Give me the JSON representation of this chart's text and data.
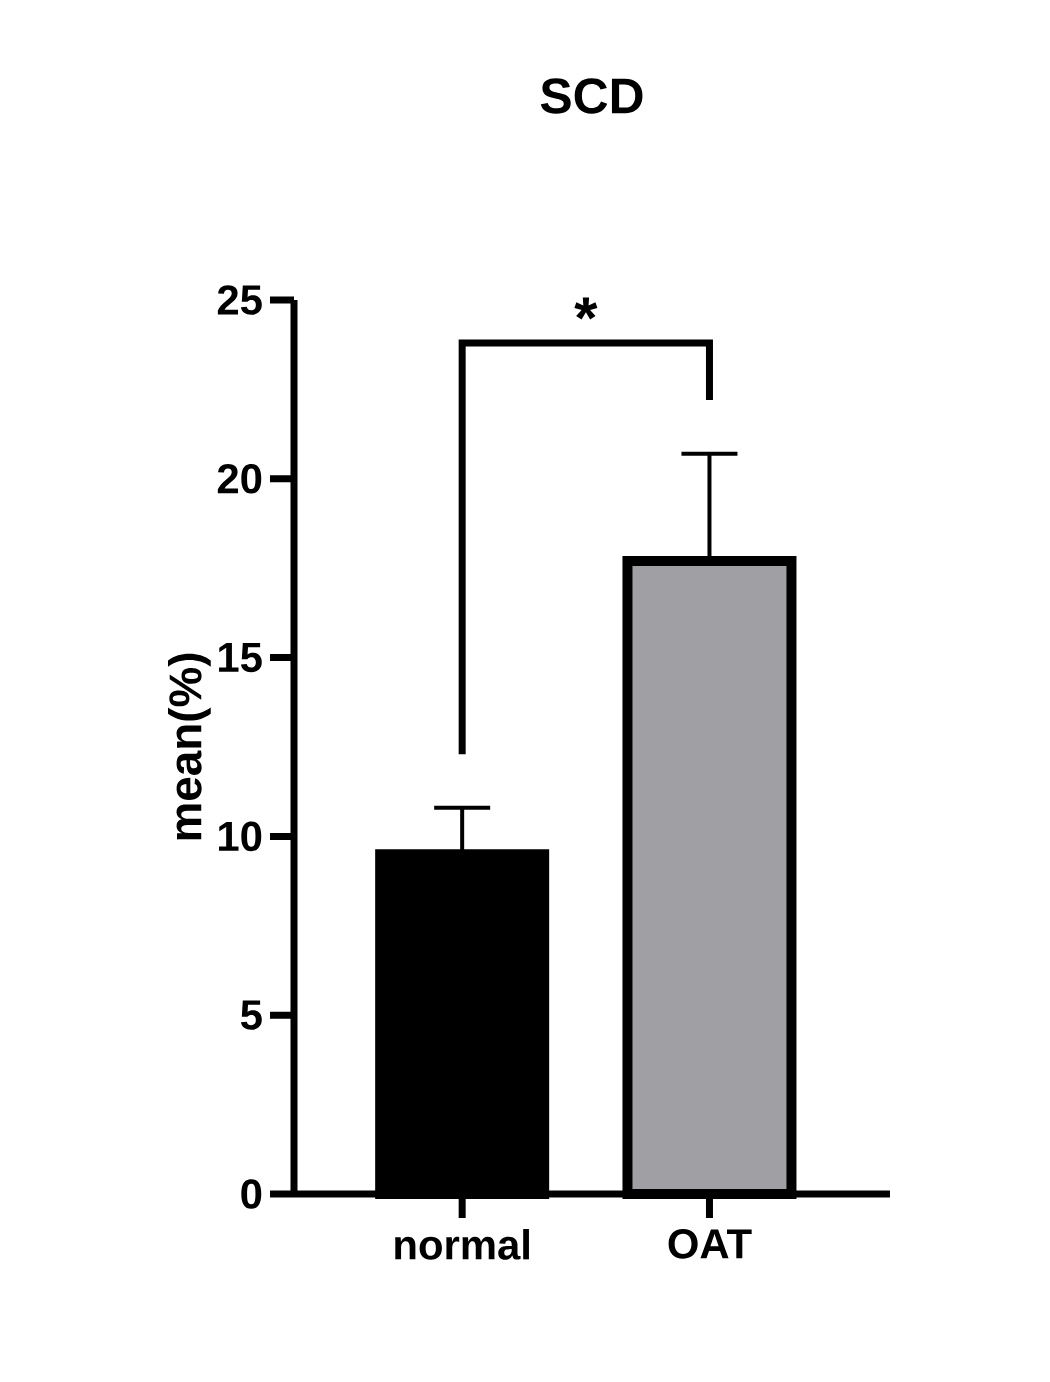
{
  "chart_data": {
    "type": "bar",
    "title": "SCD",
    "ylabel": "mean(%)",
    "categories": [
      "normal",
      "OAT"
    ],
    "values": [
      9.5,
      17.7
    ],
    "colors": [
      "#000000",
      "#a0a0a4"
    ],
    "errors": [
      [
        9.5,
        10.8
      ],
      [
        17.7,
        20.7
      ]
    ],
    "ylim": [
      0,
      25
    ],
    "yticks": [
      0,
      5,
      10,
      15,
      20,
      25
    ],
    "annotations": [
      "*"
    ]
  }
}
